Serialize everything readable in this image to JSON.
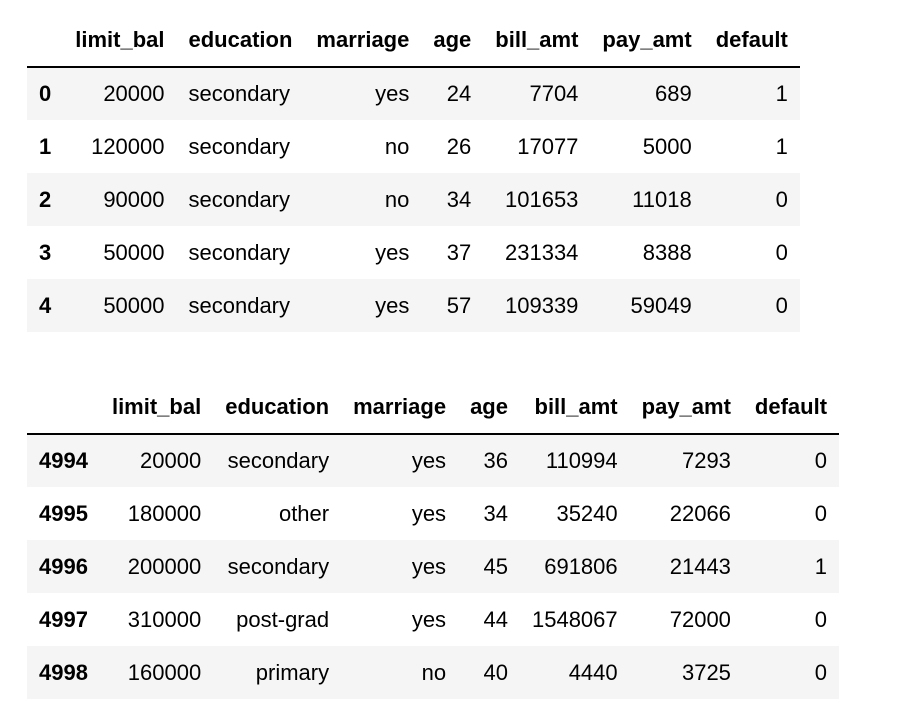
{
  "tables": [
    {
      "columns": [
        "",
        "limit_bal",
        "education",
        "marriage",
        "age",
        "bill_amt",
        "pay_amt",
        "default"
      ],
      "rows": [
        {
          "index": "0",
          "cells": [
            "20000",
            "secondary",
            "yes",
            "24",
            "7704",
            "689",
            "1"
          ]
        },
        {
          "index": "1",
          "cells": [
            "120000",
            "secondary",
            "no",
            "26",
            "17077",
            "5000",
            "1"
          ]
        },
        {
          "index": "2",
          "cells": [
            "90000",
            "secondary",
            "no",
            "34",
            "101653",
            "11018",
            "0"
          ]
        },
        {
          "index": "3",
          "cells": [
            "50000",
            "secondary",
            "yes",
            "37",
            "231334",
            "8388",
            "0"
          ]
        },
        {
          "index": "4",
          "cells": [
            "50000",
            "secondary",
            "yes",
            "57",
            "109339",
            "59049",
            "0"
          ]
        }
      ]
    },
    {
      "columns": [
        "",
        "limit_bal",
        "education",
        "marriage",
        "age",
        "bill_amt",
        "pay_amt",
        "default"
      ],
      "rows": [
        {
          "index": "4994",
          "cells": [
            "20000",
            "secondary",
            "yes",
            "36",
            "110994",
            "7293",
            "0"
          ]
        },
        {
          "index": "4995",
          "cells": [
            "180000",
            "other",
            "yes",
            "34",
            "35240",
            "22066",
            "0"
          ]
        },
        {
          "index": "4996",
          "cells": [
            "200000",
            "secondary",
            "yes",
            "45",
            "691806",
            "21443",
            "1"
          ]
        },
        {
          "index": "4997",
          "cells": [
            "310000",
            "post-grad",
            "yes",
            "44",
            "1548067",
            "72000",
            "0"
          ]
        },
        {
          "index": "4998",
          "cells": [
            "160000",
            "primary",
            "no",
            "40",
            "4440",
            "3725",
            "0"
          ]
        }
      ]
    }
  ],
  "colors": {
    "stripe": "#f5f5f5",
    "header_rule": "#000000",
    "text": "#000000"
  }
}
